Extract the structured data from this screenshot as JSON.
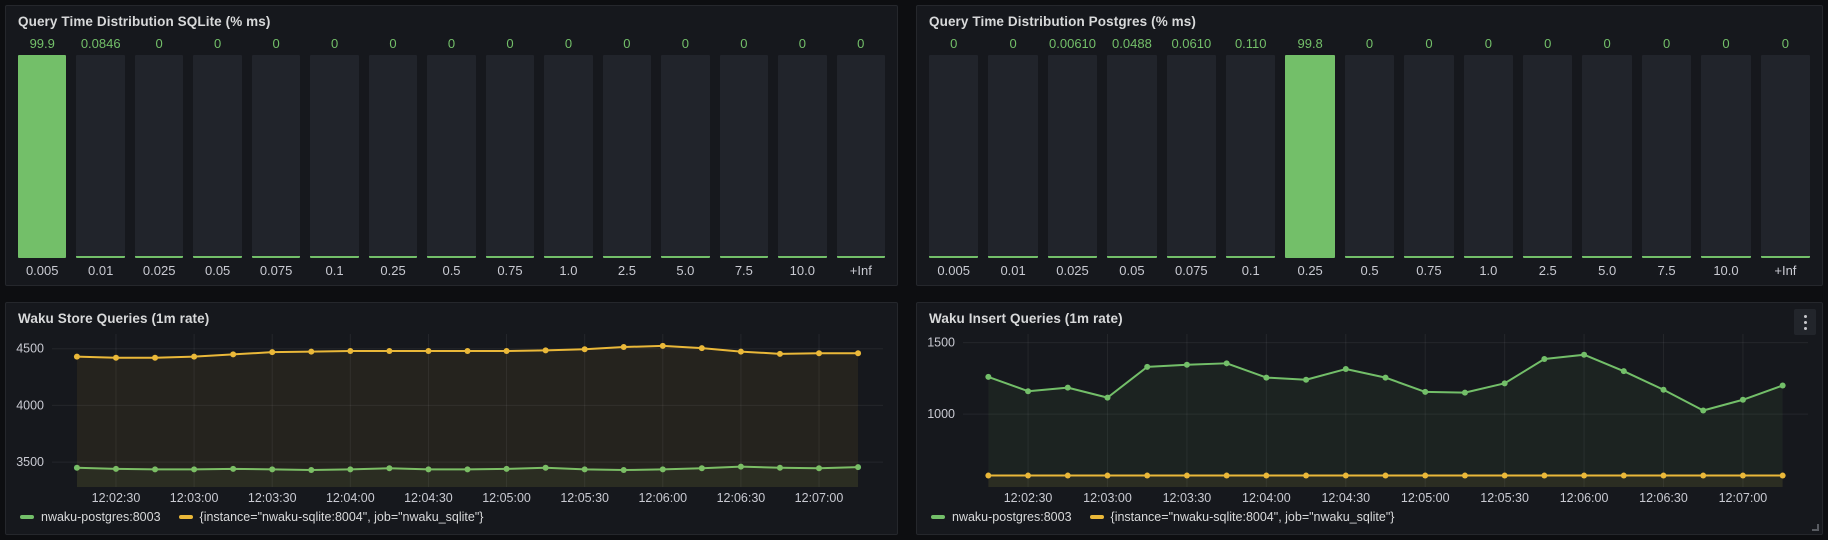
{
  "colors": {
    "green": "#73BF69",
    "yellow": "#EAB839",
    "page_bg": "#0D0E11",
    "panel_bg": "#16181D",
    "track": "#21242B",
    "title_text": "#D8D9DA",
    "axis_text": "#C9CAD2",
    "grid": "rgba(204,204,220,0.08)"
  },
  "icons": {
    "panel_menu": "kebab-vertical-dots",
    "resize_handle": "corner-grip"
  },
  "chart_data": [
    {
      "id": "sqlite_histogram",
      "type": "bar",
      "title": "Query Time Distribution SQLite (% ms)",
      "categories": [
        "0.005",
        "0.01",
        "0.025",
        "0.05",
        "0.075",
        "0.1",
        "0.25",
        "0.5",
        "0.75",
        "1.0",
        "2.5",
        "5.0",
        "7.5",
        "10.0",
        "+Inf"
      ],
      "values": [
        99.9,
        0.0846,
        0,
        0,
        0,
        0,
        0,
        0,
        0,
        0,
        0,
        0,
        0,
        0,
        0
      ],
      "value_labels": [
        "99.9",
        "0.0846",
        "0",
        "0",
        "0",
        "0",
        "0",
        "0",
        "0",
        "0",
        "0",
        "0",
        "0",
        "0",
        "0"
      ],
      "ylim": [
        0,
        100
      ],
      "bar_color": "#73BF69"
    },
    {
      "id": "postgres_histogram",
      "type": "bar",
      "title": "Query Time Distribution Postgres (% ms)",
      "categories": [
        "0.005",
        "0.01",
        "0.025",
        "0.05",
        "0.075",
        "0.1",
        "0.25",
        "0.5",
        "0.75",
        "1.0",
        "2.5",
        "5.0",
        "7.5",
        "10.0",
        "+Inf"
      ],
      "values": [
        0,
        0,
        0.0061,
        0.0488,
        0.061,
        0.11,
        99.8,
        0,
        0,
        0,
        0,
        0,
        0,
        0,
        0
      ],
      "value_labels": [
        "0",
        "0",
        "0.00610",
        "0.0488",
        "0.0610",
        "0.110",
        "99.8",
        "0",
        "0",
        "0",
        "0",
        "0",
        "0",
        "0",
        "0"
      ],
      "ylim": [
        0,
        100
      ],
      "bar_color": "#73BF69"
    },
    {
      "id": "store_queries",
      "type": "line",
      "title": "Waku Store Queries (1m rate)",
      "grid": true,
      "legend_position": "bottom",
      "yticks": [
        3500,
        4000,
        4500
      ],
      "ylim": [
        3280,
        4630
      ],
      "xticks": [
        "12:02:30",
        "12:03:00",
        "12:03:30",
        "12:04:00",
        "12:04:30",
        "12:05:00",
        "12:05:30",
        "12:06:00",
        "12:06:30",
        "12:07:00"
      ],
      "point_interval_s": 15,
      "span_s": 300,
      "first_tick_offset_s": 15,
      "tick_interval_s": 30,
      "series": [
        {
          "name": "nwaku-postgres:8003",
          "color": "#73BF69",
          "values": [
            3450,
            3440,
            3435,
            3435,
            3440,
            3435,
            3430,
            3435,
            3445,
            3435,
            3435,
            3440,
            3450,
            3435,
            3430,
            3435,
            3445,
            3460,
            3450,
            3445,
            3455
          ]
        },
        {
          "name": "{instance=\"nwaku-sqlite:8004\", job=\"nwaku_sqlite\"}",
          "color": "#EAB839",
          "values": [
            4430,
            4420,
            4420,
            4430,
            4450,
            4470,
            4475,
            4480,
            4480,
            4480,
            4480,
            4480,
            4485,
            4495,
            4515,
            4525,
            4505,
            4475,
            4455,
            4460,
            4460
          ]
        }
      ]
    },
    {
      "id": "insert_queries",
      "type": "line",
      "title": "Waku Insert Queries (1m rate)",
      "grid": true,
      "legend_position": "bottom",
      "yticks": [
        1000,
        1500
      ],
      "ylim": [
        490,
        1560
      ],
      "xticks": [
        "12:02:30",
        "12:03:00",
        "12:03:30",
        "12:04:00",
        "12:04:30",
        "12:05:00",
        "12:05:30",
        "12:06:00",
        "12:06:30",
        "12:07:00"
      ],
      "point_interval_s": 15,
      "span_s": 300,
      "first_tick_offset_s": 15,
      "tick_interval_s": 30,
      "series": [
        {
          "name": "nwaku-postgres:8003",
          "color": "#73BF69",
          "values": [
            1260,
            1160,
            1185,
            1115,
            1330,
            1345,
            1355,
            1255,
            1240,
            1315,
            1255,
            1155,
            1150,
            1215,
            1385,
            1415,
            1300,
            1170,
            1025,
            1100,
            1200
          ]
        },
        {
          "name": "{instance=\"nwaku-sqlite:8004\", job=\"nwaku_sqlite\"}",
          "color": "#EAB839",
          "values": [
            570,
            570,
            570,
            570,
            570,
            570,
            570,
            570,
            570,
            570,
            570,
            570,
            570,
            570,
            570,
            570,
            570,
            570,
            570,
            570,
            570
          ]
        }
      ]
    }
  ]
}
